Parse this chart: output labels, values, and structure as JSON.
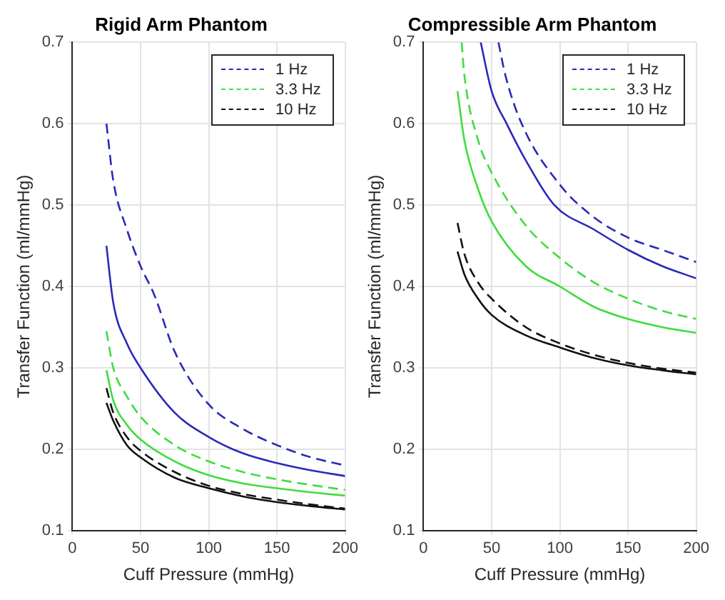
{
  "chart_data": [
    {
      "type": "line",
      "title": "Rigid Arm Phantom",
      "xlabel": "Cuff Pressure (mmHg)",
      "ylabel": "Transfer Function (ml/mmHg)",
      "xlim": [
        0,
        200
      ],
      "xticks": [
        0,
        50,
        100,
        150,
        200
      ],
      "ylim": [
        0.1,
        0.7
      ],
      "yticks": [
        0.1,
        0.2,
        0.3,
        0.4,
        0.5,
        0.6,
        0.7
      ],
      "grid": true,
      "legend": "top right",
      "marker": "none",
      "series": [
        {
          "name": "1 Hz",
          "color": "#2a2ab8",
          "line_style": "dashed",
          "x": [
            25,
            30,
            40,
            50,
            60,
            75,
            100,
            125,
            150,
            175,
            200
          ],
          "values": [
            0.6,
            0.53,
            0.47,
            0.425,
            0.39,
            0.32,
            0.255,
            0.225,
            0.205,
            0.19,
            0.18
          ]
        },
        {
          "name": "3.3 Hz",
          "color": "#3fdc3f",
          "line_style": "dashed",
          "x": [
            25,
            30,
            40,
            50,
            75,
            100,
            125,
            150,
            175,
            200
          ],
          "values": [
            0.345,
            0.3,
            0.265,
            0.24,
            0.205,
            0.185,
            0.172,
            0.163,
            0.156,
            0.15
          ]
        },
        {
          "name": "10 Hz",
          "color": "#111111",
          "line_style": "dashed",
          "x": [
            25,
            30,
            40,
            50,
            75,
            100,
            125,
            150,
            175,
            200
          ],
          "values": [
            0.275,
            0.245,
            0.215,
            0.198,
            0.172,
            0.155,
            0.145,
            0.138,
            0.132,
            0.127
          ]
        },
        {
          "color": "#2a2ab8",
          "line_style": "solid",
          "x": [
            25,
            30,
            40,
            50,
            75,
            100,
            125,
            150,
            175,
            200
          ],
          "values": [
            0.45,
            0.38,
            0.33,
            0.3,
            0.245,
            0.215,
            0.195,
            0.183,
            0.174,
            0.167
          ]
        },
        {
          "color": "#3fdc3f",
          "line_style": "solid",
          "x": [
            25,
            30,
            40,
            50,
            75,
            100,
            125,
            150,
            175,
            200
          ],
          "values": [
            0.297,
            0.26,
            0.23,
            0.212,
            0.185,
            0.168,
            0.158,
            0.152,
            0.147,
            0.143
          ]
        },
        {
          "color": "#111111",
          "line_style": "solid",
          "x": [
            25,
            30,
            40,
            50,
            75,
            100,
            125,
            150,
            175,
            200
          ],
          "values": [
            0.257,
            0.235,
            0.205,
            0.19,
            0.165,
            0.152,
            0.142,
            0.135,
            0.13,
            0.126
          ]
        }
      ]
    },
    {
      "type": "line",
      "title": "Compressible Arm Phantom",
      "xlabel": "Cuff Pressure (mmHg)",
      "ylabel": "Transfer Function (ml/mmHg)",
      "xlim": [
        0,
        200
      ],
      "xticks": [
        0,
        50,
        100,
        150,
        200
      ],
      "ylim": [
        0.1,
        0.7
      ],
      "yticks": [
        0.1,
        0.2,
        0.3,
        0.4,
        0.5,
        0.6,
        0.7
      ],
      "grid": true,
      "legend": "top right",
      "marker": "none",
      "series": [
        {
          "name": "1 Hz",
          "color": "#2a2ab8",
          "line_style": "dashed",
          "x": [
            55,
            60,
            72,
            100,
            125,
            150,
            175,
            200
          ],
          "values": [
            0.7,
            0.66,
            0.6,
            0.525,
            0.485,
            0.46,
            0.445,
            0.43
          ]
        },
        {
          "name": "3.3 Hz",
          "color": "#3fdc3f",
          "line_style": "dashed",
          "x": [
            28,
            30,
            40,
            50,
            75,
            100,
            125,
            150,
            175,
            200
          ],
          "values": [
            0.7,
            0.66,
            0.58,
            0.54,
            0.475,
            0.435,
            0.405,
            0.385,
            0.37,
            0.36
          ]
        },
        {
          "name": "10 Hz",
          "color": "#111111",
          "line_style": "dashed",
          "x": [
            25,
            30,
            40,
            50,
            75,
            100,
            125,
            150,
            175,
            200
          ],
          "values": [
            0.478,
            0.44,
            0.405,
            0.385,
            0.35,
            0.33,
            0.316,
            0.306,
            0.299,
            0.294
          ]
        },
        {
          "color": "#2a2ab8",
          "line_style": "solid",
          "x": [
            42,
            50,
            61,
            75,
            96,
            125,
            150,
            175,
            200
          ],
          "values": [
            0.7,
            0.64,
            0.6,
            0.555,
            0.5,
            0.47,
            0.445,
            0.425,
            0.41
          ]
        },
        {
          "color": "#3fdc3f",
          "line_style": "solid",
          "x": [
            25,
            30,
            40,
            50,
            75,
            100,
            125,
            150,
            175,
            200
          ],
          "values": [
            0.64,
            0.58,
            0.52,
            0.48,
            0.425,
            0.4,
            0.375,
            0.36,
            0.35,
            0.343
          ]
        },
        {
          "color": "#111111",
          "line_style": "solid",
          "x": [
            25,
            30,
            40,
            50,
            75,
            100,
            125,
            150,
            175,
            200
          ],
          "values": [
            0.443,
            0.415,
            0.385,
            0.365,
            0.34,
            0.325,
            0.312,
            0.303,
            0.297,
            0.292
          ]
        }
      ]
    }
  ]
}
